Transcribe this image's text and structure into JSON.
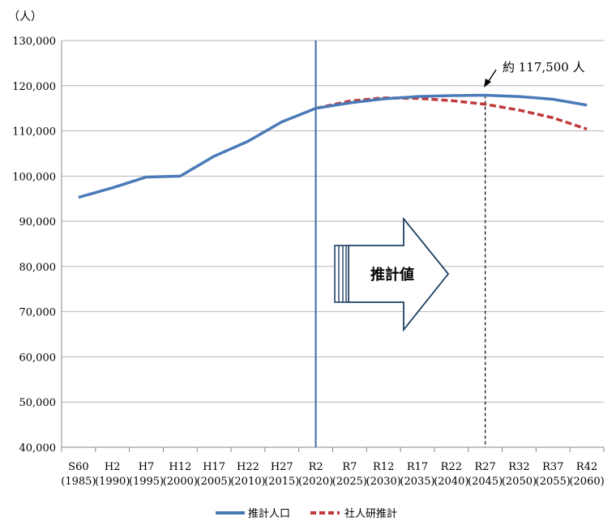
{
  "chart_data": {
    "type": "line",
    "ylabel": "（人）",
    "ylim": [
      40000,
      130000
    ],
    "y_ticks": [
      "130,000",
      "120,000",
      "110,000",
      "100,000",
      "90,000",
      "80,000",
      "70,000",
      "60,000",
      "50,000",
      "40,000"
    ],
    "y_tick_values": [
      130000,
      120000,
      110000,
      100000,
      90000,
      80000,
      70000,
      60000,
      50000,
      40000
    ],
    "categories": [
      {
        "era": "S60",
        "year": "(1985)"
      },
      {
        "era": "H2",
        "year": "(1990)"
      },
      {
        "era": "H7",
        "year": "(1995)"
      },
      {
        "era": "H12",
        "year": "(2000)"
      },
      {
        "era": "H17",
        "year": "(2005)"
      },
      {
        "era": "H22",
        "year": "(2010)"
      },
      {
        "era": "H27",
        "year": "(2015)"
      },
      {
        "era": "R2",
        "year": "(2020)"
      },
      {
        "era": "R7",
        "year": "(2025)"
      },
      {
        "era": "R12",
        "year": "(2030)"
      },
      {
        "era": "R17",
        "year": "(2035)"
      },
      {
        "era": "R22",
        "year": "(2040)"
      },
      {
        "era": "R27",
        "year": "(2045)"
      },
      {
        "era": "R32",
        "year": "(2050)"
      },
      {
        "era": "R37",
        "year": "(2055)"
      },
      {
        "era": "R42",
        "year": "(2060)"
      }
    ],
    "series": [
      {
        "name": "推計人口",
        "color": "#4a7ab8",
        "style": "solid",
        "values": [
          95300,
          97400,
          99800,
          100000,
          104400,
          107700,
          112000,
          115000,
          116200,
          117100,
          117600,
          117800,
          117900,
          117600,
          117000,
          115700
        ]
      },
      {
        "name": "社人研推計",
        "color": "#c0393b",
        "style": "dashed",
        "values": [
          null,
          null,
          null,
          null,
          null,
          null,
          null,
          115000,
          116600,
          117300,
          117200,
          116700,
          115900,
          114600,
          112900,
          110400
        ]
      }
    ],
    "annotations": {
      "peak_label": "約 117,500 人",
      "forecast_label": "推計値",
      "divider_category_index": 7,
      "peak_category_index": 12
    },
    "legend_position": "bottom",
    "grid": true
  }
}
